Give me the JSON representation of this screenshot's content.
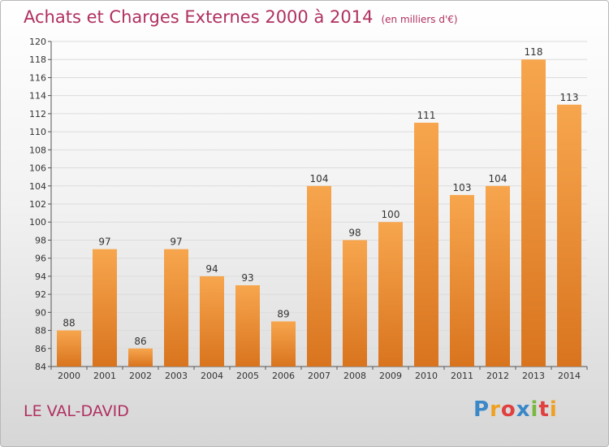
{
  "title": "Achats et Charges Externes 2000 à 2014",
  "subtitle": "(en milliers d'€)",
  "commune": "LE VAL-DAVID",
  "logo": {
    "letters": [
      "P",
      "r",
      "o",
      "x",
      "i",
      "t",
      "i"
    ],
    "colors": [
      "#3a88c8",
      "#f0a020",
      "#e04040",
      "#3a88c8",
      "#7ab840",
      "#e04040",
      "#f0a020"
    ]
  },
  "colors": {
    "title": "#b03060",
    "bar_light": "#f7a64e",
    "bar_dark": "#d9741e",
    "grid": "#dcdcdc"
  },
  "chart_data": {
    "type": "bar",
    "categories": [
      "2000",
      "2001",
      "2002",
      "2003",
      "2004",
      "2005",
      "2006",
      "2007",
      "2008",
      "2009",
      "2010",
      "2011",
      "2012",
      "2013",
      "2014"
    ],
    "values": [
      88,
      97,
      86,
      97,
      94,
      93,
      89,
      104,
      98,
      100,
      111,
      103,
      104,
      118,
      113
    ],
    "ylim": [
      84,
      120
    ],
    "yticks": [
      84,
      86,
      88,
      90,
      92,
      94,
      96,
      98,
      100,
      102,
      104,
      106,
      108,
      110,
      112,
      114,
      116,
      118,
      120
    ],
    "grid": true,
    "xlabel": "",
    "ylabel": ""
  }
}
